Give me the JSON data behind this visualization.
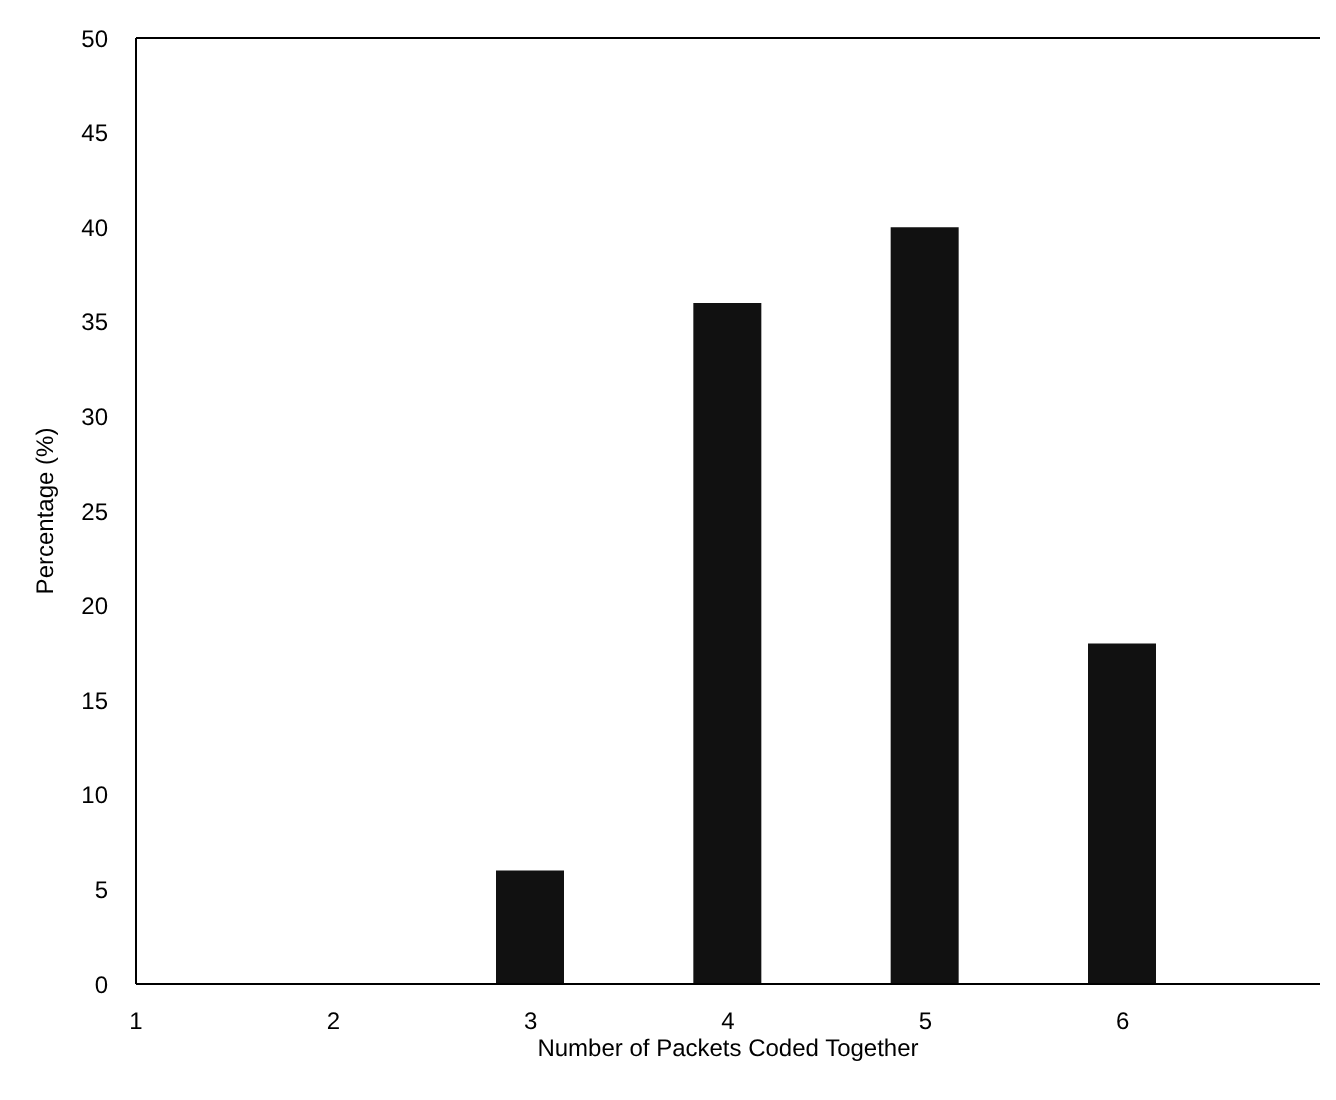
{
  "chart_data": {
    "type": "bar",
    "xlabel": "Number of Packets Coded Together",
    "ylabel": "Percentage (%)",
    "x": [
      3,
      4,
      5,
      6
    ],
    "values": [
      6,
      36,
      40,
      18
    ],
    "color": "#111111",
    "xlim": [
      1,
      7
    ],
    "xticks": [
      1,
      2,
      3,
      4,
      5,
      6
    ],
    "ylim": [
      0,
      50
    ],
    "yticks": [
      0,
      5,
      10,
      15,
      20,
      25,
      30,
      35,
      40,
      45,
      50
    ],
    "grid": false
  }
}
